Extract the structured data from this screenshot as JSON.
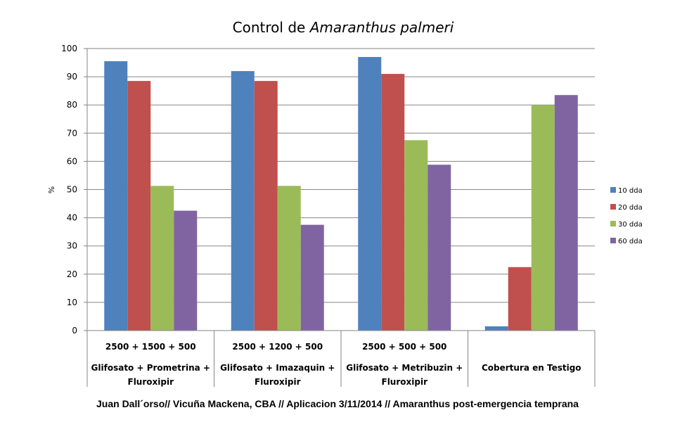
{
  "chart_data": {
    "type": "bar",
    "title": {
      "prefix": "Control de ",
      "emphasis": "Amaranthus palmeri"
    },
    "ylabel": "%",
    "ylim": [
      0,
      100
    ],
    "yticks": [
      0,
      10,
      20,
      30,
      40,
      50,
      60,
      70,
      80,
      90,
      100
    ],
    "grid": true,
    "legend": "right",
    "categories": [
      {
        "dose": "2500 + 1500 + 500",
        "name": [
          "Glifosato + Prometrina +",
          "Fluroxipir"
        ]
      },
      {
        "dose": "2500 + 1200 + 500",
        "name": [
          "Glifosato + Imazaquin +",
          "Fluroxipir"
        ]
      },
      {
        "dose": "2500 + 500 + 500",
        "name": [
          "Glifosato + Metribuzin +",
          "Fluroxipir"
        ]
      },
      {
        "dose": "",
        "name": [
          "Cobertura en Testigo"
        ]
      }
    ],
    "series": [
      {
        "name": "10 dda",
        "color": "#4F81BD",
        "values": [
          95.5,
          92,
          97,
          1.5
        ]
      },
      {
        "name": "20 dda",
        "color": "#C0504D",
        "values": [
          88.5,
          88.5,
          91,
          22.5
        ]
      },
      {
        "name": "30 dda",
        "color": "#9BBB59",
        "values": [
          51.3,
          51.3,
          67.5,
          80
        ]
      },
      {
        "name": "60 dda",
        "color": "#8064A2",
        "values": [
          42.5,
          37.5,
          58.8,
          83.5
        ]
      }
    ]
  },
  "footer": "Juan Dall´orso// Vicuña Mackena, CBA // Aplicacion 3/11/2014 // Amaranthus post-emergencia temprana"
}
